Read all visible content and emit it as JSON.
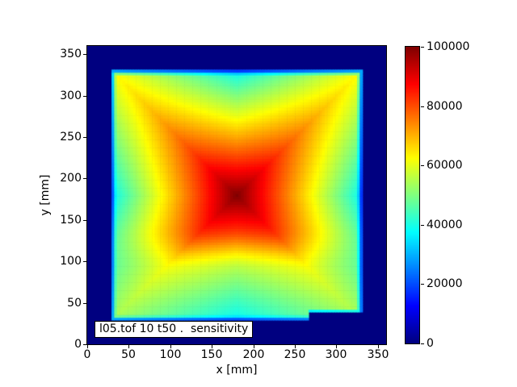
{
  "chart_data": {
    "type": "heatmap",
    "title": "l05.tof 10 t50 .  sensitivity",
    "xlabel": "x [mm]",
    "ylabel": "y [mm]",
    "xlim": [
      0,
      360
    ],
    "ylim": [
      0,
      360
    ],
    "x_ticks": [
      0,
      50,
      100,
      150,
      200,
      250,
      300,
      350
    ],
    "y_ticks": [
      0,
      50,
      100,
      150,
      200,
      250,
      300,
      350
    ],
    "colormap": "jet",
    "vmin": 0,
    "vmax": 100000,
    "colorbar_ticks": [
      0,
      20000,
      40000,
      60000,
      80000,
      100000
    ],
    "legend_position": "right-colorbar",
    "grid": false,
    "background_value": 0,
    "colors": {
      "figure_bg": "#ffffff",
      "min_color_navy": "#000080",
      "max_color_darkred": "#800000",
      "spine_color": "#000000"
    },
    "active_region_mm": {
      "x": [
        30,
        330
      ],
      "y": [
        30,
        330
      ],
      "notch": {
        "comment": "bottom-right step: background below y=38 for x>266",
        "x_from": 266,
        "x_to": 330,
        "y_below": 38
      }
    },
    "peak": {
      "x_mm": 180,
      "y_mm": 180,
      "value": 100000
    },
    "features": {
      "pattern": "square sensitivity map, hot center, bright arms curving to the four corners, cyan low band along inner edges, thin blue rim at boundary, navy zero background",
      "top_arm_color_value": 62000,
      "bottom_arm_color_value": 54000,
      "mid_edge_value": 38000
    },
    "grid_sample_mm": {
      "x": [
        30,
        60,
        90,
        120,
        150,
        180,
        210,
        240,
        270,
        300,
        330
      ],
      "y_rows_top_to_bottom": [
        330,
        300,
        270,
        240,
        210,
        180,
        150,
        120,
        90,
        60,
        30
      ],
      "values": [
        [
          62000,
          57200,
          52400,
          47600,
          42800,
          38000,
          42800,
          47600,
          52400,
          57200,
          62000
        ],
        [
          57200,
          65800,
          61900,
          58100,
          54200,
          50400,
          54200,
          58100,
          61900,
          65800,
          57200
        ],
        [
          52400,
          61900,
          71400,
          68600,
          65700,
          62800,
          65700,
          68600,
          71400,
          61900,
          52400
        ],
        [
          47600,
          58100,
          68600,
          79000,
          77100,
          75200,
          77100,
          79000,
          68600,
          58100,
          47600
        ],
        [
          42800,
          54200,
          65700,
          77100,
          88600,
          87600,
          88600,
          77100,
          65700,
          54200,
          42800
        ],
        [
          38000,
          50400,
          62800,
          75200,
          87600,
          100000,
          87600,
          75200,
          62800,
          50400,
          38000
        ],
        [
          42800,
          54200,
          65700,
          77100,
          88600,
          87600,
          88600,
          77100,
          65700,
          54200,
          42800
        ],
        [
          46200,
          55400,
          65000,
          75100,
          73200,
          71400,
          73200,
          75100,
          65000,
          55400,
          46200
        ],
        [
          47100,
          53700,
          61000,
          58800,
          56500,
          54400,
          56500,
          58800,
          61000,
          53700,
          47100
        ],
        [
          50400,
          56600,
          53700,
          51000,
          48300,
          45800,
          48300,
          51000,
          53700,
          56600,
          50400
        ],
        [
          53800,
          50400,
          47100,
          44000,
          40900,
          38000,
          40900,
          44000,
          0,
          0,
          0
        ]
      ]
    },
    "field_model": {
      "center_mm": [
        180,
        180
      ],
      "half_width_mm": 150,
      "arm_coeff": 0.387,
      "slope": 0.62,
      "bottom_exp_min": 0.6,
      "bottom_blend": [
        0.25,
        0.6
      ],
      "rim_width_mm": 5,
      "rim_depth": 0.55,
      "cell_mm": 3.25
    }
  }
}
